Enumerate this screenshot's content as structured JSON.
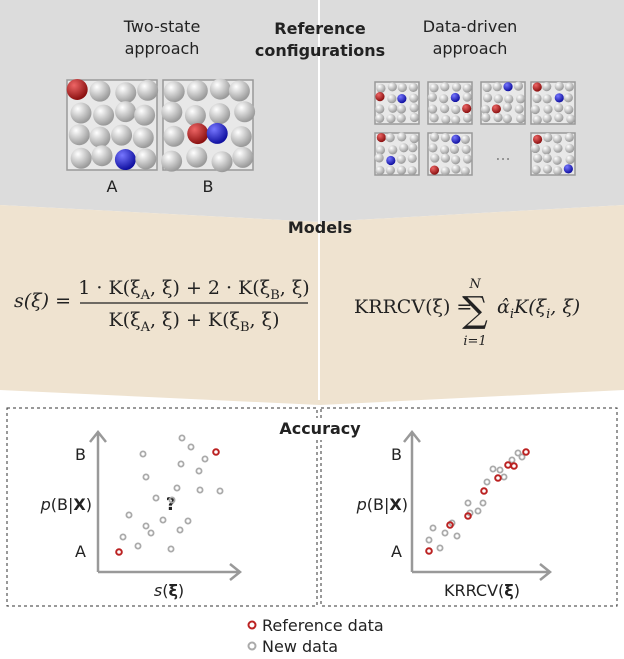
{
  "header": {
    "left": [
      "Two-state",
      "approach"
    ],
    "center": [
      "Reference",
      "configurations"
    ],
    "right": [
      "Data-driven",
      "approach"
    ]
  },
  "configs": {
    "a": "A",
    "b": "B",
    "ellipsis": "..."
  },
  "models": {
    "title": "Models",
    "left_eq": {
      "lhs": "s(ξ) =",
      "numerator": [
        "1 · K(ξ",
        "A",
        ", ξ) + 2 · K(ξ",
        "B",
        ", ξ)"
      ],
      "denominator": [
        "K(ξ",
        "A",
        ", ξ) + K(ξ",
        "B",
        ", ξ)"
      ]
    },
    "right_eq": {
      "lhs": "KRRCV(ξ) =",
      "sigma": "∑",
      "upper": "N",
      "lower": "i=1",
      "body": [
        "α̂",
        "i",
        "K(ξ",
        "i",
        ", ξ)"
      ]
    }
  },
  "accuracy": {
    "title": "Accuracy",
    "left": {
      "y_top": "B",
      "y_bottom": "A",
      "y_label": [
        "p",
        "(B|",
        "X",
        ")"
      ],
      "x_label": [
        "s",
        "(",
        "ξ",
        ")"
      ],
      "question": "?"
    },
    "right": {
      "y_top": "B",
      "y_bottom": "A",
      "y_label": [
        "p",
        "(B|",
        "X",
        ")"
      ],
      "x_label": [
        "KRRCV(",
        "ξ",
        ")"
      ]
    }
  },
  "legend": {
    "reference": "Reference data",
    "new": "New data"
  }
}
